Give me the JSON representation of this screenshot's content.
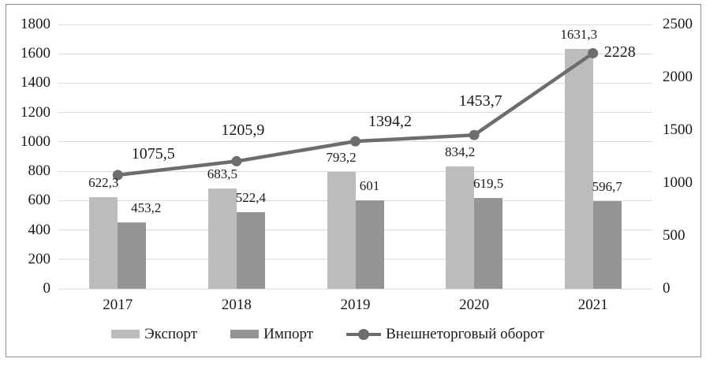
{
  "chart_data": {
    "type": "combo",
    "title": "",
    "categories": [
      "2017",
      "2018",
      "2019",
      "2020",
      "2021"
    ],
    "series": [
      {
        "name": "Экспорт",
        "type": "bar",
        "axis": "left",
        "values": [
          622.3,
          683.5,
          793.2,
          834.2,
          1631.3
        ],
        "labels": [
          "622,3",
          "683,5",
          "793,2",
          "834,2",
          "1631,3"
        ],
        "color": "#bcbcbc"
      },
      {
        "name": "Импорт",
        "type": "bar",
        "axis": "left",
        "values": [
          453.2,
          522.4,
          601,
          619.5,
          596.7
        ],
        "labels": [
          "453,2",
          "522,4",
          "601",
          "619,5",
          "596,7"
        ],
        "color": "#949494"
      },
      {
        "name": "Внешнеторговый оборот",
        "type": "line",
        "axis": "right",
        "values": [
          1075.5,
          1205.9,
          1394.2,
          1453.7,
          2228
        ],
        "labels": [
          "1075,5",
          "1205,9",
          "1394,2",
          "1453,7",
          "2228"
        ],
        "color": "#6d6d6d",
        "marker": "circle"
      }
    ],
    "left_axis": {
      "min": 0,
      "max": 1800,
      "tick_values": [
        0,
        200,
        400,
        600,
        800,
        1000,
        1200,
        1400,
        1600,
        1800
      ],
      "tick_labels": [
        "0",
        "200",
        "400",
        "600",
        "800",
        "1000",
        "1200",
        "1400",
        "1600",
        "1800"
      ]
    },
    "right_axis": {
      "min": 0,
      "max": 2500,
      "tick_values": [
        0,
        500,
        1000,
        1500,
        2000,
        2500
      ],
      "tick_labels": [
        "0",
        "500",
        "1000",
        "1500",
        "2000",
        "2500"
      ]
    },
    "grid": "horizontal",
    "legend_position": "bottom",
    "colors": {
      "gridline": "#dcdcdc",
      "border": "#919191",
      "text": "#1a1a1a"
    }
  }
}
